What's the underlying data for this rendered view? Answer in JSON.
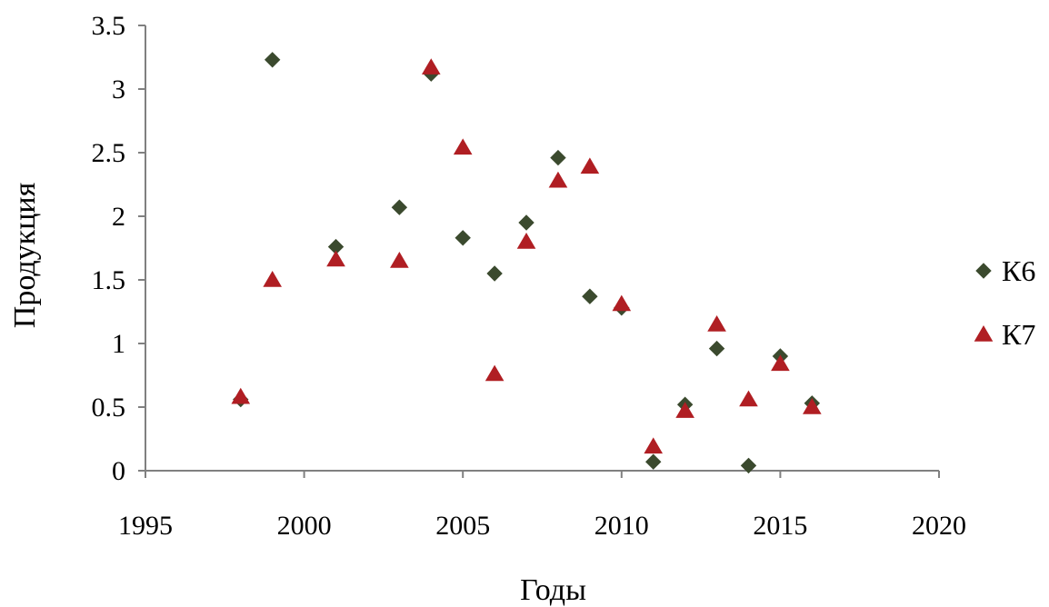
{
  "chart_data": {
    "type": "scatter",
    "title": "",
    "xlabel": "Годы",
    "ylabel": "Продукция",
    "xlim": [
      1995,
      2020
    ],
    "ylim": [
      0,
      3.5
    ],
    "xticks": [
      1995,
      2000,
      2005,
      2010,
      2015,
      2020
    ],
    "yticks": [
      0,
      0.5,
      1,
      1.5,
      2,
      2.5,
      3,
      3.5
    ],
    "xtick_labels": [
      "1995",
      "2000",
      "2005",
      "2010",
      "2015",
      "2020"
    ],
    "ytick_labels": [
      "0",
      "0.5",
      "1",
      "1.5",
      "2",
      "2.5",
      "3",
      "3.5"
    ],
    "grid": false,
    "legend_position": "right",
    "series": [
      {
        "name": "К6",
        "marker": "diamond",
        "color": "#3b4a2e",
        "x": [
          1998,
          1999,
          2001,
          2003,
          2004,
          2005,
          2006,
          2007,
          2008,
          2009,
          2010,
          2011,
          2012,
          2013,
          2014,
          2015,
          2016
        ],
        "y": [
          0.56,
          3.23,
          1.76,
          2.07,
          3.12,
          1.83,
          1.55,
          1.95,
          2.46,
          1.37,
          1.28,
          0.07,
          0.52,
          0.96,
          0.04,
          0.9,
          0.53
        ]
      },
      {
        "name": "К7",
        "marker": "triangle",
        "color": "#b01e23",
        "x": [
          1998,
          1999,
          2001,
          2003,
          2004,
          2005,
          2006,
          2007,
          2008,
          2009,
          2010,
          2011,
          2012,
          2013,
          2014,
          2015,
          2016
        ],
        "y": [
          0.58,
          1.5,
          1.66,
          1.65,
          3.17,
          2.54,
          0.76,
          1.8,
          2.28,
          2.39,
          1.31,
          0.19,
          0.47,
          1.15,
          0.56,
          0.84,
          0.5
        ]
      }
    ]
  }
}
